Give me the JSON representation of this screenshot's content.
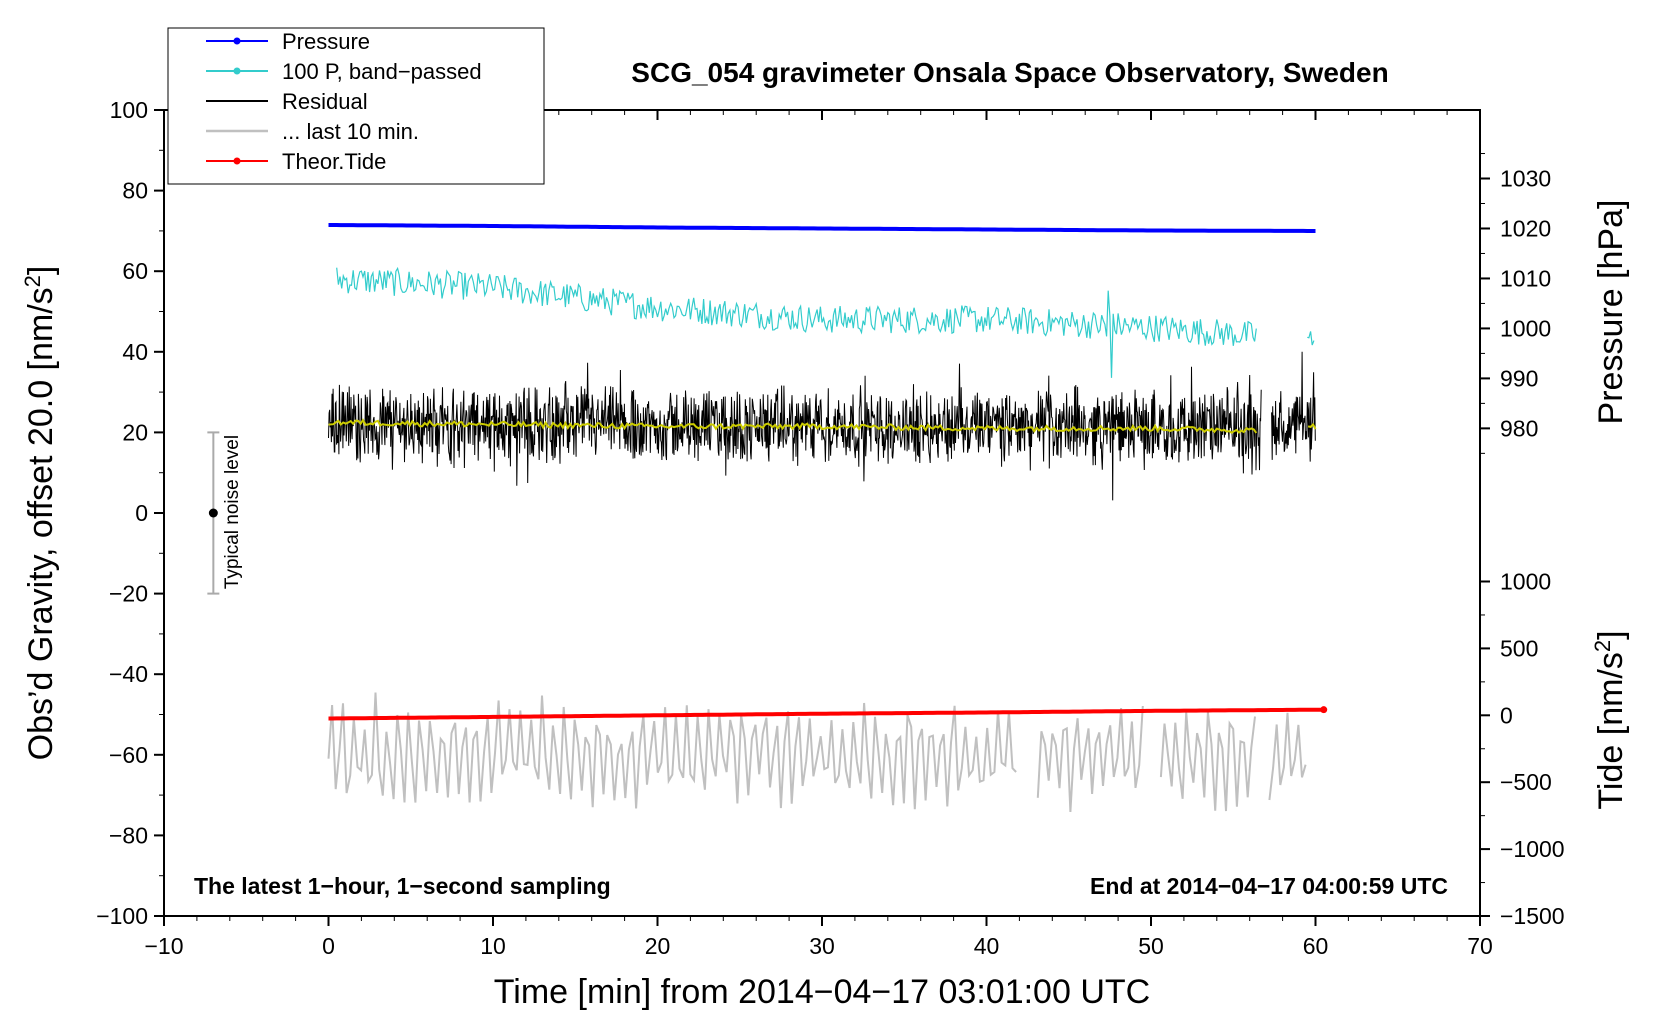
{
  "chart_data": {
    "type": "line",
    "title": "SCG_054 gravimeter Onsala Space Observatory, Sweden",
    "xlabel": "Time [min] from 2014−04−17 03:01:00 UTC",
    "ylabel": "Obs’d Gravity, offset 20.0 [nm/s",
    "ylabel_sup": "2",
    "ylabel_tail": "]",
    "y2label_pressure": "Pressure [hPa]",
    "y2label_tide": "Tide [nm/s",
    "y2label_tide_sup": "2",
    "y2label_tide_tail": "]",
    "xlim": [
      -10,
      70
    ],
    "ylim": [
      -100,
      100
    ],
    "xticks": [
      -10,
      0,
      10,
      20,
      30,
      40,
      50,
      60,
      70
    ],
    "yticks": [
      -100,
      -80,
      -60,
      -40,
      -20,
      0,
      20,
      40,
      60,
      80,
      100
    ],
    "pressure_axis": {
      "ticks": [
        980,
        990,
        1000,
        1010,
        1020,
        1030
      ],
      "map": [
        [
          980,
          21
        ],
        [
          1030,
          83
        ]
      ]
    },
    "tide_axis": {
      "ticks": [
        -1500,
        -1000,
        -500,
        0,
        500,
        1000
      ],
      "map": [
        [
          -1500,
          -100
        ],
        [
          1000,
          -17
        ]
      ]
    },
    "tick_labels": {
      "x": [
        "−10",
        "0",
        "10",
        "20",
        "30",
        "40",
        "50",
        "60",
        "70"
      ],
      "y": [
        "−100",
        "−80",
        "−60",
        "−40",
        "−20",
        "0",
        "20",
        "40",
        "60",
        "80",
        "100"
      ],
      "pressure": [
        "980",
        "990",
        "1000",
        "1010",
        "1020",
        "1030"
      ],
      "tide": [
        "−1500",
        "−1000",
        "−500",
        "0",
        "500",
        "1000"
      ]
    },
    "legend": {
      "placement": "top-left",
      "entries": [
        {
          "label": "Pressure",
          "color": "#0000ff",
          "marker": true
        },
        {
          "label": "100 P, band−passed",
          "color": "#33cccc",
          "marker": true
        },
        {
          "label": "Residual",
          "color": "#000000",
          "marker": false
        },
        {
          "label": "... last 10 min.",
          "color": "#c0c0c0",
          "marker": false
        },
        {
          "label": "Theor.Tide",
          "color": "#ff0000",
          "marker": true
        }
      ]
    },
    "series": [
      {
        "name": "Pressure",
        "axis": "pressure",
        "color": "#0000ff",
        "x": [
          0,
          10,
          20,
          30,
          40,
          50,
          60
        ],
        "values": [
          1020.7,
          1020.5,
          1020.2,
          1020.0,
          1019.8,
          1019.6,
          1019.5
        ]
      },
      {
        "name": "100 P, band−passed",
        "color": "#33cccc",
        "style": "noisy",
        "x": [
          0.5,
          10,
          20,
          30,
          40,
          50,
          56.5
        ],
        "values": [
          58,
          56,
          51,
          48,
          48,
          46,
          44
        ],
        "noise_amp": 3.5,
        "gap": [
          56.8,
          59.4
        ],
        "tail": {
          "x": [
            59.5,
            60
          ],
          "values": [
            44,
            40
          ]
        }
      },
      {
        "name": "Residual",
        "color": "#000000",
        "style": "noisy",
        "x": [
          0,
          60
        ],
        "values": [
          22,
          21
        ],
        "noise_amp": 11
      },
      {
        "name": "Residual smoothed",
        "color": "#cccc00",
        "x": [
          0,
          10,
          20,
          30,
          40,
          50,
          56.5,
          57.3,
          59.5,
          60
        ],
        "values": [
          22.5,
          22,
          21.5,
          21.5,
          21,
          21,
          20.5,
          null,
          21.5,
          21.5
        ]
      },
      {
        "name": "... last 10 min.",
        "color": "#c0c0c0",
        "style": "oscillating",
        "x": [
          0,
          60
        ],
        "values": [
          -60,
          -60
        ],
        "noise_amp": 12,
        "gaps": [
          [
            42,
            43
          ],
          [
            49.5,
            50.5
          ],
          [
            56.5,
            57
          ],
          [
            59.5,
            60
          ]
        ]
      },
      {
        "name": "Theor.Tide",
        "axis": "tide",
        "color": "#ff0000",
        "x": [
          0,
          10,
          20,
          30,
          40,
          50,
          60.5
        ],
        "values": [
          -51,
          -50.6,
          -50.2,
          -49.8,
          -49.5,
          -49.1,
          -48.8
        ]
      }
    ],
    "noise_indicator": {
      "label": "Typical noise level",
      "x": -7,
      "center": 0,
      "range": [
        -20,
        20
      ]
    },
    "annotations": [
      {
        "text": "The latest 1−hour, 1−second sampling",
        "position": "bottom-left"
      },
      {
        "text": "End at 2014−04−17 04:00:59 UTC",
        "position": "bottom-right"
      }
    ]
  }
}
